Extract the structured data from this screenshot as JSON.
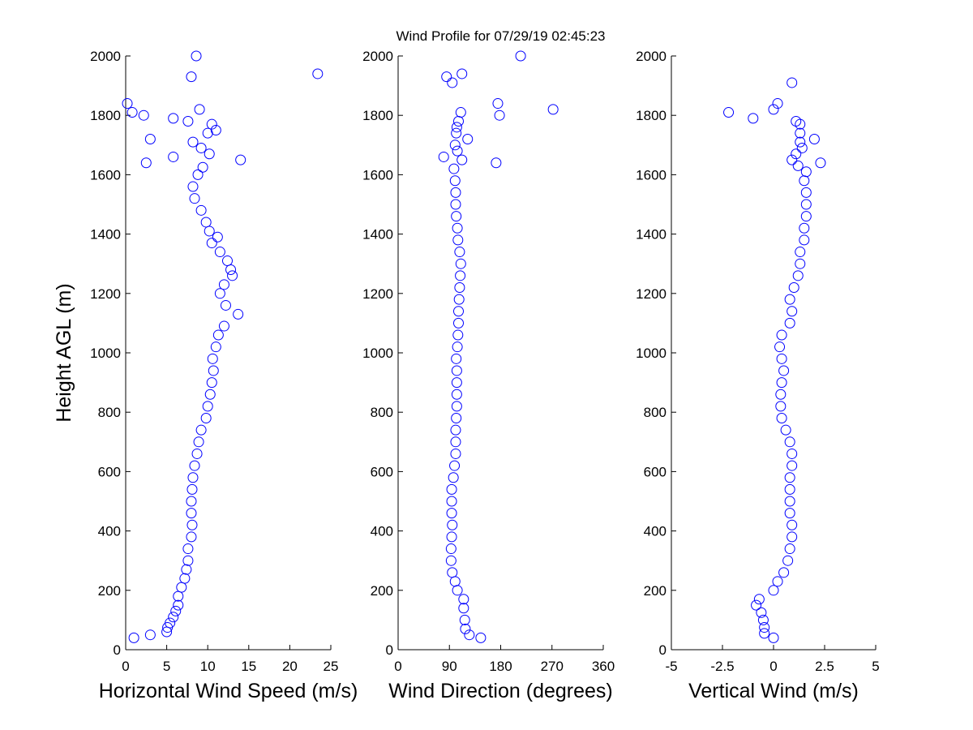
{
  "chart_data": [
    {
      "type": "scatter",
      "color": "#0000ff",
      "xlabel": "Horizontal Wind Speed (m/s)",
      "ylabel": "Height AGL (m)",
      "xlim": [
        0,
        25
      ],
      "xticks": [
        0,
        5,
        10,
        15,
        20,
        25
      ],
      "ylim": [
        0,
        2000
      ],
      "yticks": [
        0,
        200,
        400,
        600,
        800,
        1000,
        1200,
        1400,
        1600,
        1800,
        2000
      ],
      "x": [
        1.0,
        3.0,
        5.0,
        5.1,
        5.4,
        5.8,
        6.1,
        6.4,
        6.4,
        6.8,
        7.2,
        7.4,
        7.6,
        7.6,
        8.0,
        8.1,
        8.0,
        8.0,
        8.1,
        8.2,
        8.4,
        8.7,
        8.9,
        9.2,
        9.8,
        10.0,
        10.3,
        10.5,
        10.7,
        10.6,
        11.0,
        11.3,
        12.0,
        13.7,
        12.2,
        11.5,
        12.0,
        13.0,
        12.8,
        12.4,
        11.5,
        10.5,
        11.2,
        10.2,
        9.8,
        9.2,
        8.4,
        8.2,
        8.8,
        9.4,
        2.5,
        14.0,
        5.8,
        10.2,
        9.2,
        8.2,
        3.0,
        10.0,
        11.0,
        10.5,
        7.6,
        5.8,
        2.2,
        0.8,
        9.0,
        0.2,
        8.0,
        23.4,
        8.6
      ],
      "y": [
        40,
        50,
        60,
        75,
        90,
        110,
        130,
        150,
        180,
        210,
        240,
        270,
        300,
        340,
        380,
        420,
        460,
        500,
        540,
        580,
        620,
        660,
        700,
        740,
        780,
        820,
        860,
        900,
        940,
        980,
        1020,
        1060,
        1090,
        1130,
        1160,
        1200,
        1230,
        1260,
        1280,
        1310,
        1340,
        1370,
        1390,
        1410,
        1440,
        1480,
        1520,
        1560,
        1600,
        1625,
        1640,
        1650,
        1660,
        1670,
        1690,
        1710,
        1720,
        1740,
        1750,
        1770,
        1780,
        1790,
        1800,
        1810,
        1820,
        1840,
        1930,
        1940,
        2000
      ]
    },
    {
      "type": "scatter",
      "color": "#0000ff",
      "title": "Wind Profile for  07/29/19 02:45:23",
      "xlabel": "Wind Direction (degrees)",
      "xlim": [
        0,
        360
      ],
      "xticks": [
        0,
        90,
        180,
        270,
        360
      ],
      "ylim": [
        0,
        2000
      ],
      "yticks": [
        0,
        200,
        400,
        600,
        800,
        1000,
        1200,
        1400,
        1600,
        1800,
        2000
      ],
      "x": [
        145,
        125,
        118,
        117,
        115,
        115,
        104,
        100,
        95,
        93,
        93,
        94,
        95,
        94,
        94,
        94,
        97,
        99,
        101,
        101,
        101,
        102,
        103,
        103,
        103,
        103,
        102,
        104,
        105,
        106,
        106,
        107,
        108,
        109,
        110,
        108,
        105,
        104,
        102,
        101,
        101,
        100,
        98,
        172,
        112,
        80,
        104,
        100,
        122,
        102,
        103,
        106,
        178,
        110,
        272,
        175,
        95,
        85,
        112,
        215
      ],
      "y": [
        40,
        50,
        70,
        100,
        140,
        170,
        200,
        230,
        260,
        300,
        340,
        380,
        420,
        460,
        500,
        540,
        580,
        620,
        660,
        700,
        740,
        780,
        820,
        860,
        900,
        940,
        980,
        1020,
        1060,
        1100,
        1140,
        1180,
        1220,
        1260,
        1300,
        1340,
        1380,
        1420,
        1460,
        1500,
        1540,
        1580,
        1620,
        1640,
        1650,
        1660,
        1680,
        1700,
        1720,
        1740,
        1760,
        1780,
        1800,
        1810,
        1820,
        1840,
        1910,
        1930,
        1940,
        2000
      ]
    },
    {
      "type": "scatter",
      "color": "#0000ff",
      "xlabel": "Vertical Wind (m/s)",
      "xlim": [
        -5,
        5
      ],
      "xticks": [
        -5,
        -2.5,
        0,
        2.5,
        5
      ],
      "ylim": [
        0,
        2000
      ],
      "yticks": [
        0,
        200,
        400,
        600,
        800,
        1000,
        1200,
        1400,
        1600,
        1800,
        2000
      ],
      "x": [
        0.0,
        -0.45,
        -0.45,
        -0.5,
        -0.6,
        -0.85,
        -0.7,
        0.0,
        0.2,
        0.5,
        0.7,
        0.8,
        0.9,
        0.9,
        0.8,
        0.8,
        0.8,
        0.8,
        0.9,
        0.9,
        0.8,
        0.6,
        0.4,
        0.35,
        0.35,
        0.4,
        0.5,
        0.4,
        0.3,
        0.4,
        0.8,
        0.9,
        0.8,
        1.0,
        1.2,
        1.3,
        1.3,
        1.5,
        1.5,
        1.6,
        1.6,
        1.6,
        1.5,
        1.6,
        1.2,
        2.3,
        0.9,
        1.1,
        1.4,
        1.3,
        2.0,
        1.3,
        1.3,
        1.1,
        -1.0,
        -2.2,
        0.0,
        0.2,
        0.9
      ],
      "y": [
        40,
        55,
        75,
        100,
        125,
        150,
        170,
        200,
        230,
        260,
        300,
        340,
        380,
        420,
        460,
        500,
        540,
        580,
        620,
        660,
        700,
        740,
        780,
        820,
        860,
        900,
        940,
        980,
        1020,
        1060,
        1100,
        1140,
        1180,
        1220,
        1260,
        1300,
        1340,
        1380,
        1420,
        1460,
        1500,
        1540,
        1580,
        1610,
        1630,
        1640,
        1650,
        1670,
        1690,
        1710,
        1720,
        1740,
        1770,
        1780,
        1790,
        1810,
        1820,
        1840,
        1910
      ]
    }
  ]
}
